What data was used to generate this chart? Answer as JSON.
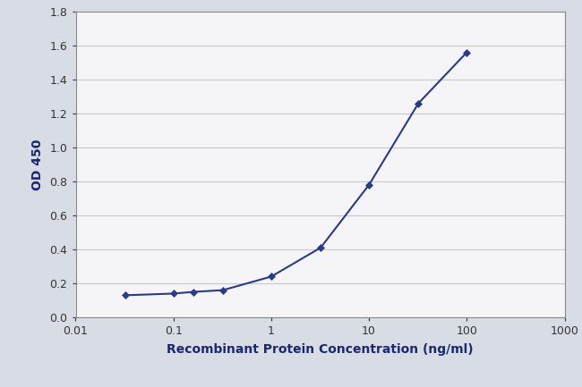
{
  "x": [
    0.032,
    0.1,
    0.16,
    0.32,
    1.0,
    3.2,
    10.0,
    32.0,
    100.0
  ],
  "y": [
    0.13,
    0.14,
    0.15,
    0.16,
    0.24,
    0.41,
    0.78,
    1.26,
    1.56
  ],
  "line_color": "#2a3a8c",
  "marker_color": "#2a3a8c",
  "marker_style": "D",
  "marker_size": 4,
  "line_width": 1.5,
  "xlabel": "Recombinant Protein Concentration (ng/ml)",
  "ylabel": "OD 450",
  "xlim": [
    0.01,
    1000
  ],
  "ylim": [
    0,
    1.8
  ],
  "yticks": [
    0,
    0.2,
    0.4,
    0.6,
    0.8,
    1.0,
    1.2,
    1.4,
    1.6,
    1.8
  ],
  "xticks": [
    0.01,
    0.1,
    1,
    10,
    100,
    1000
  ],
  "xtick_labels": [
    "0.01",
    "0.1",
    "1",
    "10",
    "100",
    "1000"
  ],
  "outer_bg_color": "#d8dce4",
  "plot_bg_color": "#f5f5f8",
  "grid_color": "#c8c8cc",
  "xlabel_fontsize": 10,
  "ylabel_fontsize": 10,
  "tick_fontsize": 9,
  "spine_color": "#888888"
}
